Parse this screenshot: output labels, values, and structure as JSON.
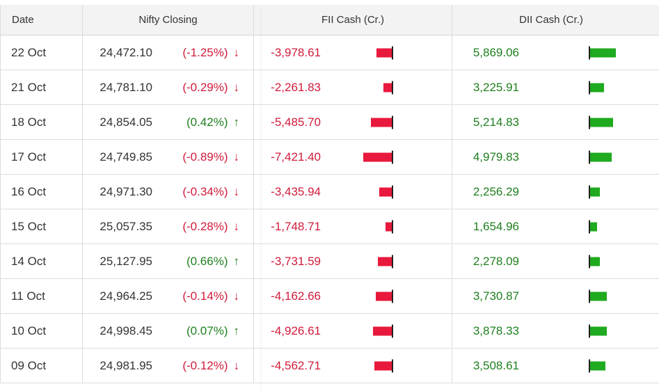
{
  "headers": {
    "date": "Date",
    "nifty": "Nifty Closing",
    "fii": "FII Cash (Cr.)",
    "dii": "DII Cash (Cr.)"
  },
  "colors": {
    "negative": "#d11a3a",
    "positive": "#1e7f1e",
    "fii_bar": "#e8193c",
    "dii_bar": "#1faa1f"
  },
  "rows": [
    {
      "date": "22 Oct",
      "nifty": "24,472.10",
      "change": "(-1.25%)",
      "dir": "down",
      "fii": "-3,978.61",
      "fii_num": -3978.61,
      "dii": "5,869.06",
      "dii_num": 5869.06
    },
    {
      "date": "21 Oct",
      "nifty": "24,781.10",
      "change": "(-0.29%)",
      "dir": "down",
      "fii": "-2,261.83",
      "fii_num": -2261.83,
      "dii": "3,225.91",
      "dii_num": 3225.91
    },
    {
      "date": "18 Oct",
      "nifty": "24,854.05",
      "change": "(0.42%)",
      "dir": "up",
      "fii": "-5,485.70",
      "fii_num": -5485.7,
      "dii": "5,214.83",
      "dii_num": 5214.83
    },
    {
      "date": "17 Oct",
      "nifty": "24,749.85",
      "change": "(-0.89%)",
      "dir": "down",
      "fii": "-7,421.40",
      "fii_num": -7421.4,
      "dii": "4,979.83",
      "dii_num": 4979.83
    },
    {
      "date": "16 Oct",
      "nifty": "24,971.30",
      "change": "(-0.34%)",
      "dir": "down",
      "fii": "-3,435.94",
      "fii_num": -3435.94,
      "dii": "2,256.29",
      "dii_num": 2256.29
    },
    {
      "date": "15 Oct",
      "nifty": "25,057.35",
      "change": "(-0.28%)",
      "dir": "down",
      "fii": "-1,748.71",
      "fii_num": -1748.71,
      "dii": "1,654.96",
      "dii_num": 1654.96
    },
    {
      "date": "14 Oct",
      "nifty": "25,127.95",
      "change": "(0.66%)",
      "dir": "up",
      "fii": "-3,731.59",
      "fii_num": -3731.59,
      "dii": "2,278.09",
      "dii_num": 2278.09
    },
    {
      "date": "11 Oct",
      "nifty": "24,964.25",
      "change": "(-0.14%)",
      "dir": "down",
      "fii": "-4,162.66",
      "fii_num": -4162.66,
      "dii": "3,730.87",
      "dii_num": 3730.87
    },
    {
      "date": "10 Oct",
      "nifty": "24,998.45",
      "change": "(0.07%)",
      "dir": "up",
      "fii": "-4,926.61",
      "fii_num": -4926.61,
      "dii": "3,878.33",
      "dii_num": 3878.33
    },
    {
      "date": "09 Oct",
      "nifty": "24,981.95",
      "change": "(-0.12%)",
      "dir": "down",
      "fii": "-4,562.71",
      "fii_num": -4562.71,
      "dii": "3,508.61",
      "dii_num": 3508.61
    }
  ]
}
